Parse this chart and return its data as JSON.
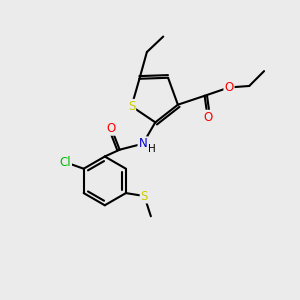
{
  "bg_color": "#ebebeb",
  "atom_colors": {
    "S": "#cccc00",
    "O": "#ff0000",
    "N": "#0000cc",
    "Cl": "#00bb00",
    "C": "#000000",
    "H": "#000000"
  },
  "bond_color": "#000000",
  "bond_lw": 1.5,
  "font_size": 8.5,
  "figsize": [
    3.0,
    3.0
  ],
  "dpi": 100
}
